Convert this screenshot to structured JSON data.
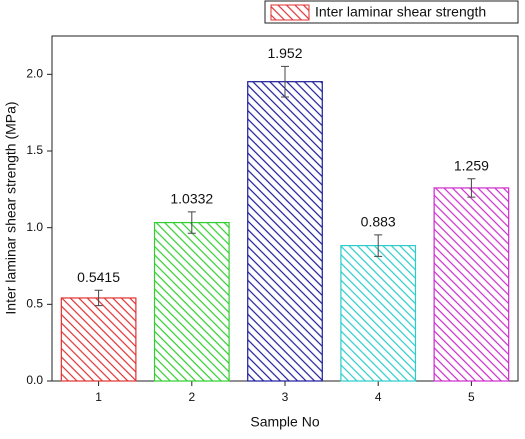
{
  "chart_data": {
    "type": "bar",
    "x_label": "Sample No",
    "y_label": "Inter laminar shear strength (MPa)",
    "categories": [
      "1",
      "2",
      "3",
      "4",
      "5"
    ],
    "series": [
      {
        "name": "Inter laminar shear strength",
        "colors": [
          "#e03232",
          "#2fcf2f",
          "#1c1c9c",
          "#2ccccc",
          "#cc2ccc"
        ],
        "values": [
          0.5415,
          1.0332,
          1.952,
          0.883,
          1.259
        ],
        "errors": [
          0.05,
          0.07,
          0.1,
          0.07,
          0.06
        ]
      }
    ],
    "ylim": [
      0,
      2.25
    ],
    "yticks": [
      {
        "value": 0,
        "label": "0.0"
      },
      0.5,
      {
        "value": 1,
        "label": "1.0"
      },
      1.5,
      {
        "value": 2,
        "label": "2.0"
      }
    ],
    "grid": false,
    "hatch": true,
    "legend": "top-right"
  }
}
